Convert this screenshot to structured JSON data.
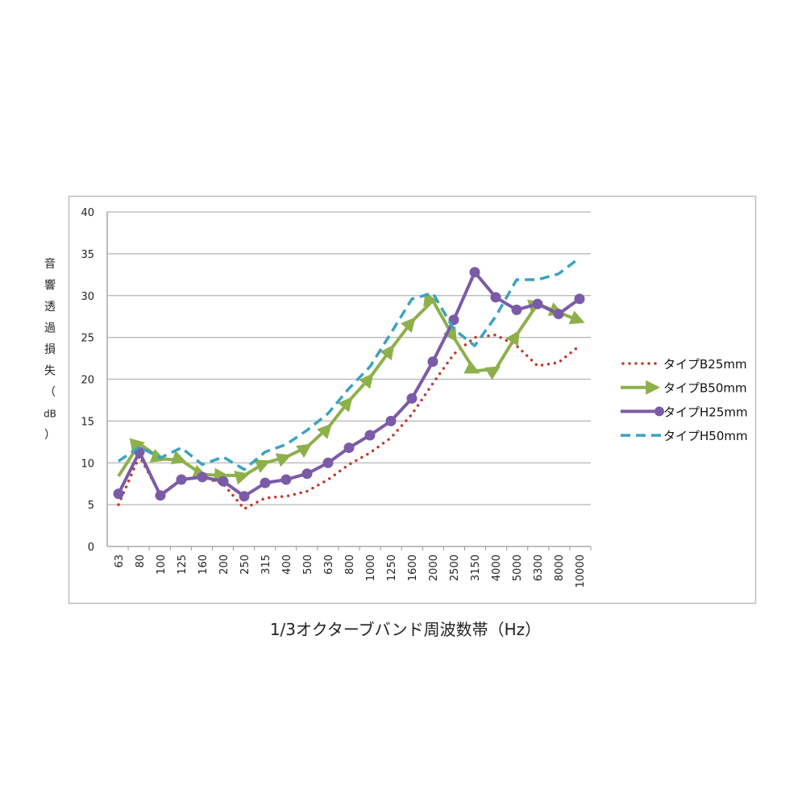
{
  "chart_data": {
    "type": "line",
    "title": "",
    "xlabel": "1/3オクターブバンド周波数帯（Hz）",
    "ylabel_chars": [
      "音",
      "響",
      "透",
      "過",
      "損",
      "失",
      "（",
      "dB",
      "）"
    ],
    "ylim": [
      0,
      40
    ],
    "yticks": [
      "0",
      "5",
      "10",
      "15",
      "20",
      "25",
      "30",
      "35",
      "40"
    ],
    "grid": true,
    "legend_position": "right",
    "categories": [
      "63",
      "80",
      "100",
      "125",
      "160",
      "200",
      "250",
      "315",
      "400",
      "500",
      "630",
      "800",
      "1000",
      "1250",
      "1600",
      "2000",
      "2500",
      "3150",
      "4000",
      "5000",
      "6300",
      "8000",
      "10000"
    ],
    "series": [
      {
        "name": "タイプB25mm",
        "color": "#c0392b",
        "style": "dotted",
        "values": [
          5.0,
          10.8,
          6.2,
          8.0,
          8.3,
          7.5,
          4.5,
          5.8,
          6.0,
          6.6,
          8.0,
          9.8,
          11.2,
          13.0,
          15.8,
          19.5,
          23.0,
          25.0,
          25.3,
          24.0,
          21.6,
          22.0,
          24.0
        ]
      },
      {
        "name": "タイプB50mm",
        "color": "#8db04a",
        "style": "arrow",
        "values": [
          8.4,
          12.3,
          10.5,
          10.3,
          8.6,
          8.5,
          8.5,
          10.0,
          10.7,
          11.9,
          14.2,
          17.4,
          20.2,
          23.6,
          26.9,
          29.4,
          25.0,
          21.0,
          21.2,
          25.3,
          29.0,
          28.0,
          27.0
        ]
      },
      {
        "name": "タイプH25mm",
        "color": "#7b5ba8",
        "style": "circle",
        "values": [
          6.3,
          11.3,
          6.1,
          8.0,
          8.3,
          7.8,
          6.0,
          7.6,
          8.0,
          8.7,
          10.0,
          11.8,
          13.3,
          15.0,
          17.7,
          22.1,
          27.1,
          32.8,
          29.8,
          28.3,
          29.0,
          27.8,
          29.6
        ]
      },
      {
        "name": "タイプH50mm",
        "color": "#3ba3bf",
        "style": "dashed",
        "values": [
          10.2,
          11.9,
          10.6,
          11.8,
          9.8,
          10.7,
          9.2,
          11.3,
          12.2,
          13.9,
          15.9,
          18.9,
          21.5,
          25.5,
          29.6,
          30.3,
          26.0,
          24.0,
          27.5,
          31.9,
          31.9,
          32.6,
          34.5
        ]
      }
    ]
  }
}
